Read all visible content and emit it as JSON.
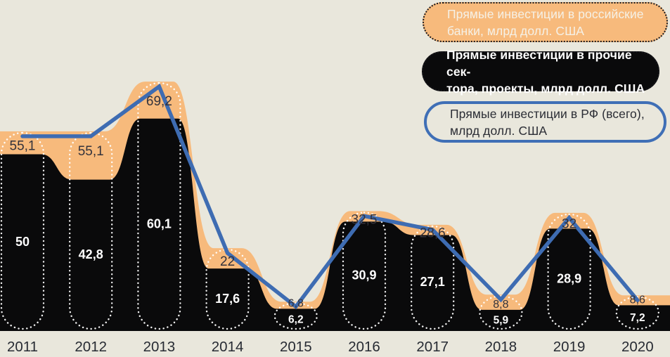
{
  "chart_data": {
    "type": "area",
    "title": "",
    "categories": [
      "2011",
      "2012",
      "2013",
      "2014",
      "2015",
      "2016",
      "2017",
      "2018",
      "2019",
      "2020"
    ],
    "series": [
      {
        "name": "Прямые инвестиции в российские банки, млрд долл. США",
        "type": "area-band",
        "color": "#f7ba7c",
        "note": "orange band between total line and other-sectors area; band values not labeled in the image"
      },
      {
        "name": "Прямые инвестиции в прочие сектора, проекты, млрд долл. США",
        "type": "area",
        "color": "#0a0a0b",
        "values": [
          50,
          42.8,
          60.1,
          17.6,
          6.2,
          30.9,
          27.1,
          5.9,
          28.9,
          7.2
        ],
        "labels": [
          "50",
          "42,8",
          "60,1",
          "17,6",
          "6,2",
          "30,9",
          "27,1",
          "5,9",
          "28,9",
          "7,2"
        ]
      },
      {
        "name": "Прямые инвестиции в РФ (всего), млрд долл. США",
        "type": "line",
        "color": "#3e6cb2",
        "values": [
          55.1,
          55.1,
          69.2,
          22,
          6.8,
          32.5,
          28.6,
          8.8,
          32,
          8.6
        ],
        "labels": [
          "55,1",
          "55,1",
          "69,2",
          "22",
          "6,8",
          "32,5",
          "28,6",
          "8,8",
          "32",
          "8,6"
        ]
      }
    ],
    "ylim": [
      0,
      75
    ],
    "grid": false,
    "legend_position": "top-right",
    "decimal_separator": ","
  },
  "legend": {
    "items": [
      {
        "id": "banks",
        "line1": "Прямые инвестиции в российские",
        "line2": "банки, млрд долл. США",
        "bg": "#f7ba7c",
        "text": "#f5f1e7",
        "border": "dotted-dark"
      },
      {
        "id": "other",
        "line1": "Прямые инвестиции в прочие сек-",
        "line2": "тора, проекты, млрд долл. США",
        "bg": "#0a0a0b",
        "text": "#ffffff",
        "border": "dotted-dark"
      },
      {
        "id": "total",
        "line1": "Прямые инвестиции в РФ (всего),",
        "line2": "млрд долл. США",
        "bg": "transparent",
        "text": "#2b2d35",
        "border": "solid-blue",
        "border_color": "#3f6fb6"
      }
    ]
  },
  "colors": {
    "background": "#e9e7dc",
    "value_label_dark": "#34333c",
    "value_label_light": "#ffffff",
    "year_label": "#272b33",
    "column_outline": "#ffffff"
  }
}
